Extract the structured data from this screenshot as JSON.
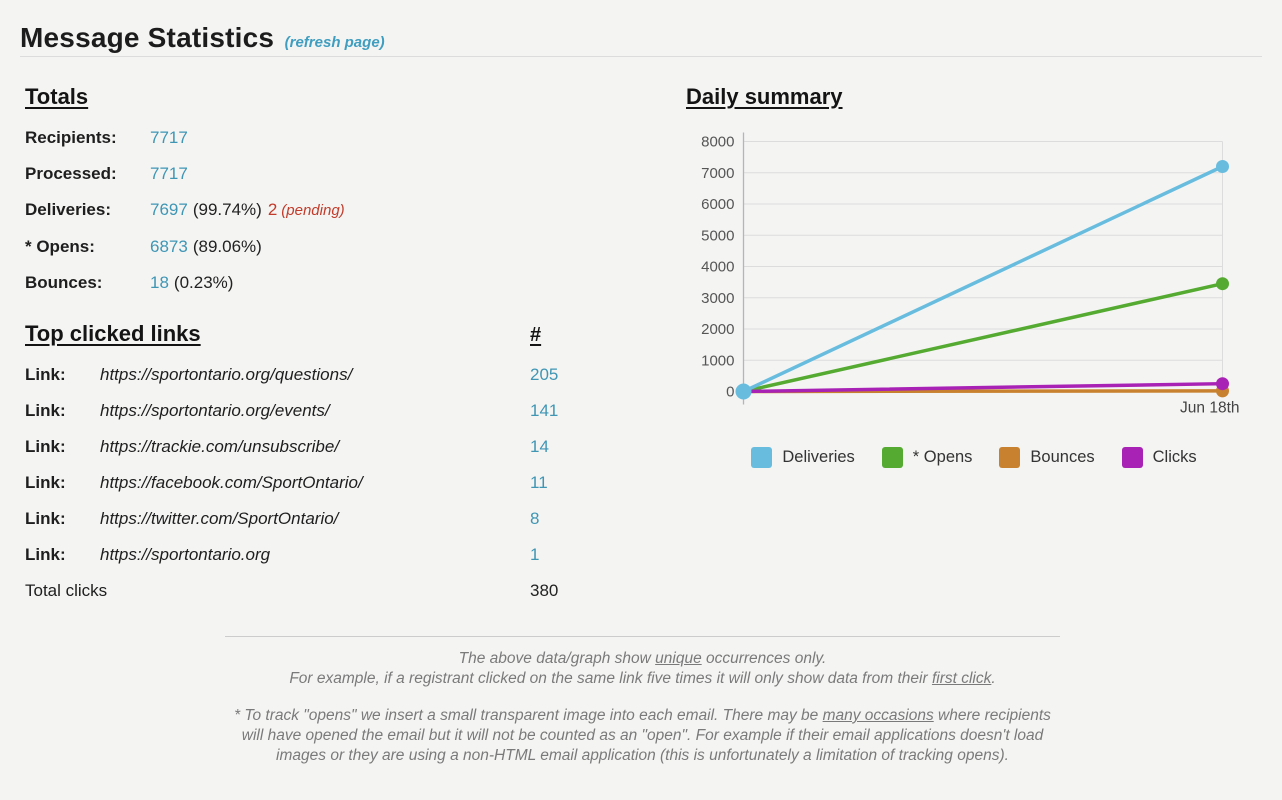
{
  "page": {
    "title": "Message Statistics",
    "refresh_link": "(refresh page)"
  },
  "totals": {
    "heading": "Totals",
    "rows": [
      {
        "label": "Recipients:",
        "value": "7717"
      },
      {
        "label": "Processed:",
        "value": "7717"
      },
      {
        "label": "Deliveries:",
        "value": "7697",
        "pct": "(99.74%)",
        "pending_value": "2",
        "pending_note": "(pending)"
      },
      {
        "label": "* Opens:",
        "value": "6873",
        "pct": "(89.06%)"
      },
      {
        "label": "Bounces:",
        "value": "18",
        "pct": "(0.23%)"
      }
    ]
  },
  "top_links": {
    "heading": "Top clicked links",
    "count_header": "#",
    "rows": [
      {
        "label": "Link:",
        "url": "https://sportontario.org/questions/",
        "count": "205"
      },
      {
        "label": "Link:",
        "url": "https://sportontario.org/events/",
        "count": "141"
      },
      {
        "label": "Link:",
        "url": "https://trackie.com/unsubscribe/",
        "count": "14"
      },
      {
        "label": "Link:",
        "url": "https://facebook.com/SportOntario/",
        "count": "11"
      },
      {
        "label": "Link:",
        "url": "https://twitter.com/SportOntario/",
        "count": "8"
      },
      {
        "label": "Link:",
        "url": "https://sportontario.org",
        "count": "1"
      }
    ],
    "total_label": "Total clicks",
    "total_count": "380"
  },
  "chart_data": {
    "type": "line",
    "title": "Daily summary",
    "x_labels": [
      "",
      "Jun 18th"
    ],
    "ylim": [
      0,
      8000
    ],
    "y_tick_step": 1000,
    "grid": true,
    "legend_position": "bottom",
    "series": [
      {
        "name": "Deliveries",
        "color": "#68bddf",
        "values": [
          0,
          7200
        ]
      },
      {
        "name": "* Opens",
        "color": "#55ab31",
        "values": [
          0,
          3450
        ]
      },
      {
        "name": "Bounces",
        "color": "#c8822f",
        "values": [
          0,
          20
        ]
      },
      {
        "name": "Clicks",
        "color": "#a823b5",
        "values": [
          0,
          250
        ]
      }
    ]
  },
  "footer": {
    "note1_line1": {
      "pre": "The above data/graph show ",
      "u": "unique",
      "post": " occurrences only."
    },
    "note1_line2": {
      "pre": "For example, if a registrant clicked on the same link five times it will only show data from their ",
      "u": "first click",
      "post": "."
    },
    "note2": {
      "pre": "* To track \"opens\" we insert a small transparent image into each email. There may be ",
      "u": "many occasions",
      "post": " where recipients will have opened the email but it will not be counted as an \"open\". For example if their email applications doesn't load images or they are using a non-HTML email application (this is unfortunately a limitation of tracking opens)."
    }
  },
  "colors": {
    "accent_teal": "#3f96b4",
    "pending_red": "#c23b2a",
    "grid_line": "#dcdcdc"
  }
}
